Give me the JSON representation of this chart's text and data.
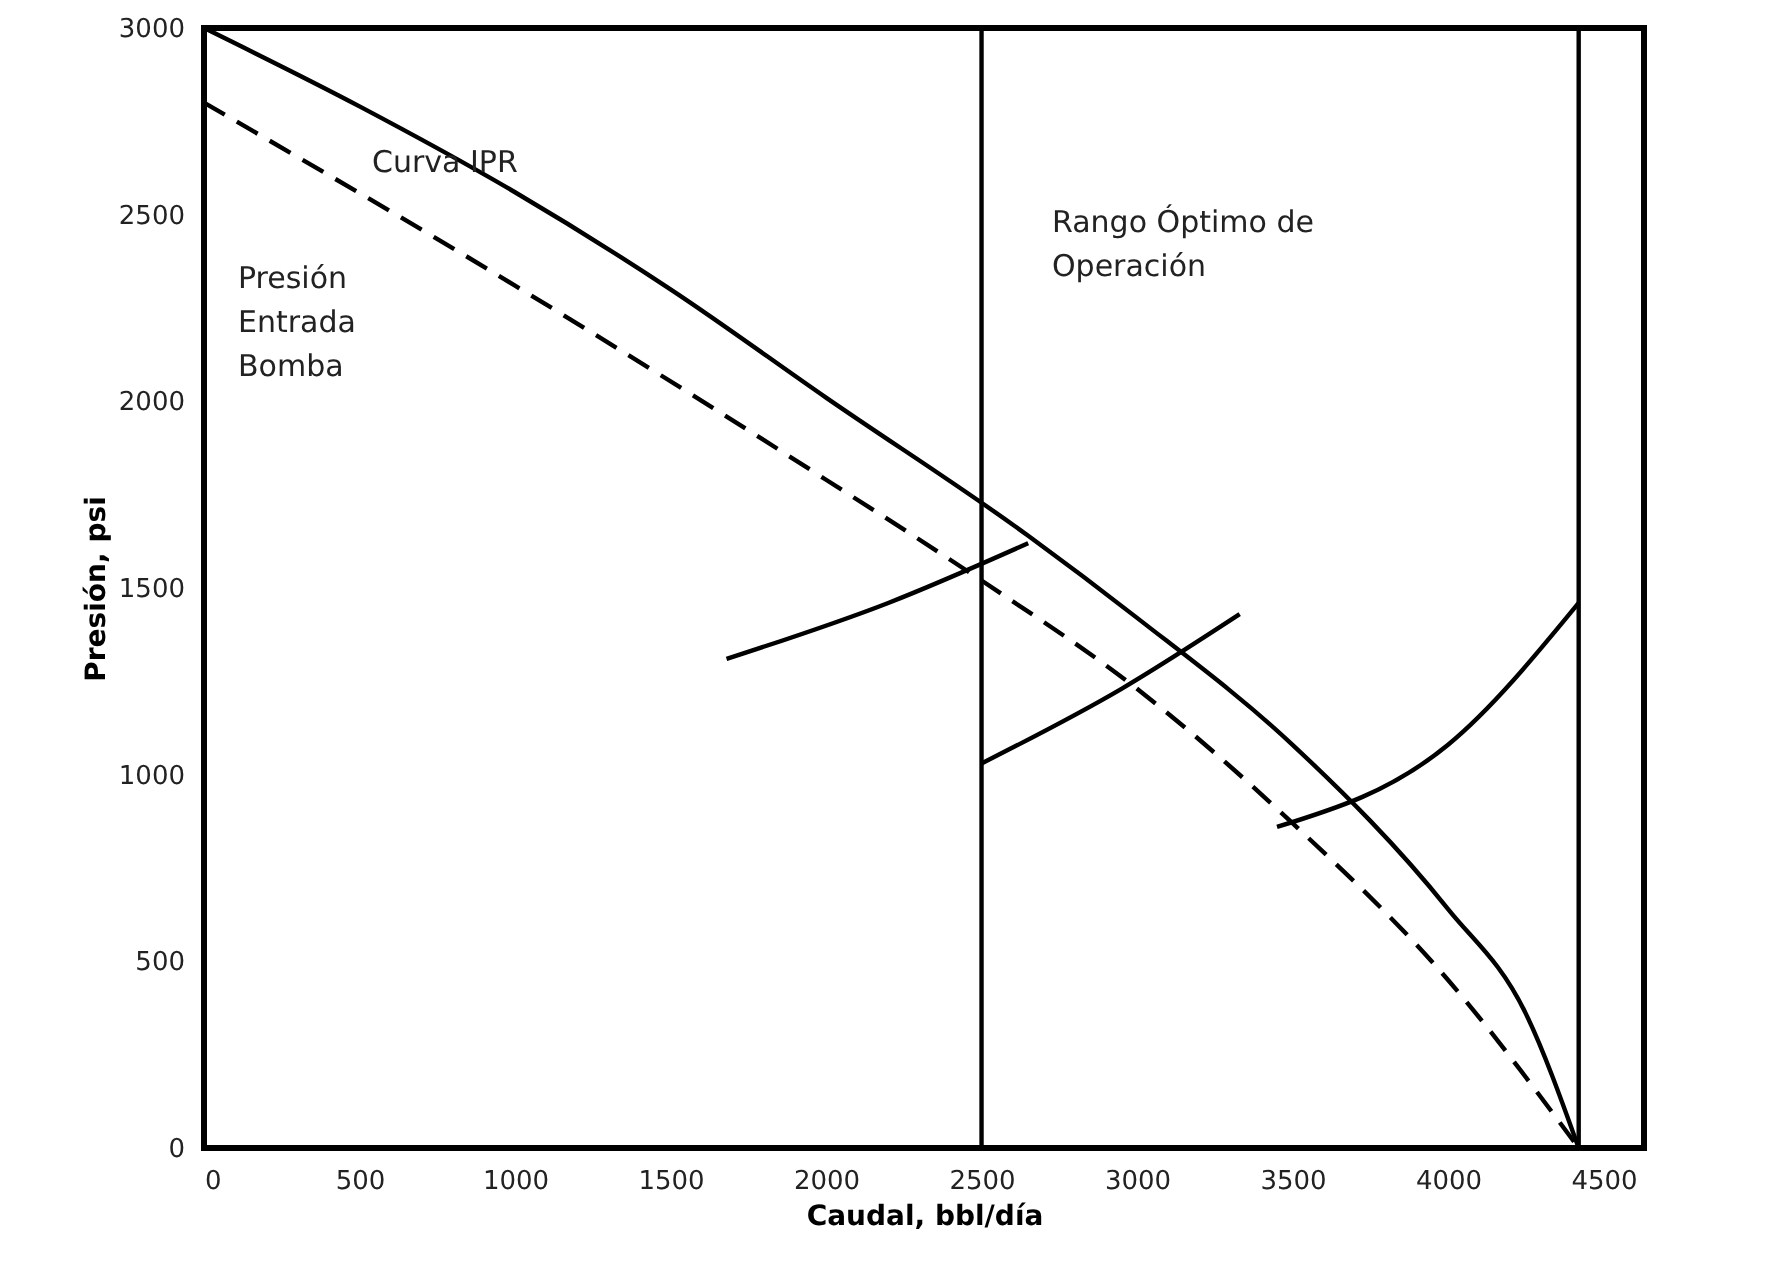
{
  "chart_data": {
    "type": "line",
    "xlabel": "Caudal, bbl/día",
    "ylabel": "Presión, psi",
    "xlim": [
      0,
      4630
    ],
    "ylim": [
      0,
      3000
    ],
    "xticks": [
      0,
      500,
      1000,
      1500,
      2000,
      2500,
      3000,
      3500,
      4000,
      4500
    ],
    "yticks": [
      0,
      500,
      1000,
      1500,
      2000,
      2500,
      3000
    ],
    "grid": false,
    "series": [
      {
        "color": "#000000",
        "line_style": "solid",
        "x": [
          0,
          500,
          1000,
          1500,
          2000,
          2650,
          3000,
          3500,
          4000,
          4250,
          4420
        ],
        "values": [
          3000,
          2790,
          2560,
          2300,
          2010,
          1640,
          1420,
          1080,
          640,
          360,
          0
        ]
      },
      {
        "color": "#000000",
        "line_style": "dashed",
        "x": [
          0,
          1000,
          2000,
          2500,
          3000,
          3500,
          4000,
          4420
        ],
        "values": [
          2800,
          2310,
          1790,
          1520,
          1230,
          870,
          450,
          0
        ]
      },
      {
        "color": "#000000",
        "line_style": "solid",
        "x": [
          1680,
          2200,
          2650
        ],
        "values": [
          1310,
          1460,
          1620
        ]
      },
      {
        "color": "#000000",
        "line_style": "solid",
        "x": [
          2500,
          2950,
          3330
        ],
        "values": [
          1030,
          1230,
          1430
        ]
      },
      {
        "color": "#000000",
        "line_style": "solid",
        "x": [
          3450,
          4000,
          4420
        ],
        "values": [
          860,
          1080,
          1460
        ]
      }
    ],
    "ref_lines": [
      {
        "axis": "x",
        "value": 2500,
        "color": "#000000"
      },
      {
        "axis": "x",
        "value": 4420,
        "color": "#000000"
      }
    ],
    "annotations": [
      "Curva IPR",
      "Presión\nEntrada\nBomba",
      "Rango Óptimo de\nOperación"
    ]
  }
}
